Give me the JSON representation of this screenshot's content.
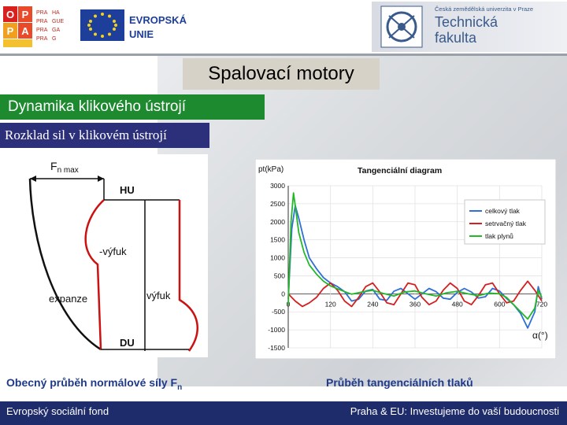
{
  "logos": {
    "opp_letters": [
      "O",
      "P",
      "P",
      "A"
    ],
    "praha_grid": [
      "PRA",
      "HA",
      "PRA",
      "GUE",
      "PRA",
      "GA",
      "PRA",
      "G"
    ],
    "eu_text_1": "EVROPSKÁ",
    "eu_text_2": "UNIE",
    "university": "Česká zemědělská univerzita v Praze",
    "faculty_1": "Technická",
    "faculty_2": "fakulta"
  },
  "title": "Spalovací motory",
  "subtitle": "Dynamika klikového ústrojí",
  "section_heading": "Rozklad sil v klikovém ústrojí",
  "left_diagram": {
    "label_fn": "F",
    "label_fn_sub": "n max",
    "label_hu": "HU",
    "label_du": "DU",
    "label_vyfuk_top": "-výfuk",
    "label_vyfuk_bottom": "výfuk",
    "label_expanze": "expanze",
    "color_black": "#111111",
    "color_red": "#cc1111"
  },
  "chart_data": {
    "type": "line",
    "title": "Tangenciální diagram",
    "ylabel": "pt(kPa)",
    "xlabel": "α(°)",
    "xlim": [
      0,
      720
    ],
    "ylim": [
      -1500,
      3000
    ],
    "y_ticks": [
      3000,
      2500,
      2000,
      1500,
      1000,
      500,
      0,
      -500,
      -1000,
      -1500
    ],
    "x_ticks": [
      0,
      120,
      240,
      360,
      480,
      600,
      720
    ],
    "grid": true,
    "legend_position": "right",
    "series": [
      {
        "name": "celkový tlak",
        "color": "#2f6fd6",
        "x": [
          0,
          10,
          20,
          30,
          45,
          60,
          80,
          100,
          120,
          140,
          160,
          180,
          200,
          220,
          240,
          260,
          280,
          300,
          320,
          340,
          360,
          380,
          400,
          420,
          440,
          460,
          480,
          500,
          520,
          540,
          560,
          580,
          600,
          620,
          640,
          660,
          680,
          700,
          710,
          720
        ],
        "y": [
          -150,
          1800,
          2450,
          2100,
          1500,
          1000,
          700,
          450,
          300,
          200,
          60,
          -200,
          -150,
          80,
          120,
          -150,
          -180,
          70,
          150,
          0,
          -150,
          0,
          150,
          60,
          -120,
          -150,
          40,
          150,
          50,
          -120,
          -80,
          150,
          80,
          -130,
          -300,
          -550,
          -950,
          -500,
          200,
          -150
        ]
      },
      {
        "name": "setrvačný tlak",
        "color": "#d42020",
        "x": [
          0,
          20,
          40,
          60,
          80,
          100,
          120,
          140,
          160,
          180,
          200,
          220,
          240,
          260,
          280,
          300,
          320,
          340,
          360,
          380,
          400,
          420,
          440,
          460,
          480,
          500,
          520,
          540,
          560,
          580,
          600,
          620,
          640,
          660,
          680,
          700,
          720
        ],
        "y": [
          0,
          -200,
          -350,
          -250,
          -100,
          150,
          300,
          100,
          -200,
          -350,
          -100,
          200,
          300,
          50,
          -250,
          -300,
          0,
          300,
          250,
          -100,
          -300,
          -200,
          100,
          300,
          150,
          -200,
          -300,
          -50,
          250,
          300,
          0,
          -250,
          -200,
          100,
          350,
          100,
          -200
        ]
      },
      {
        "name": "tlak plynů",
        "color": "#22b82a",
        "x": [
          0,
          8,
          15,
          22,
          30,
          45,
          60,
          80,
          100,
          120,
          150,
          180,
          210,
          240,
          270,
          300,
          330,
          360,
          390,
          420,
          450,
          480,
          510,
          540,
          570,
          600,
          620,
          640,
          660,
          680,
          700,
          710,
          720
        ],
        "y": [
          -300,
          2000,
          2800,
          2300,
          1700,
          1150,
          800,
          550,
          350,
          220,
          100,
          -10,
          50,
          100,
          10,
          -60,
          50,
          80,
          0,
          -60,
          30,
          70,
          0,
          -50,
          20,
          0,
          -100,
          -300,
          -500,
          -700,
          -400,
          100,
          -100
        ]
      }
    ]
  },
  "left_caption": "Obecný průběh normálové síly F",
  "left_caption_sub": "n",
  "right_caption": "Průběh tangenciálních tlaků",
  "footer_left": "Evropský sociální fond",
  "footer_right": "Praha & EU: Investujeme do vaší budoucnosti"
}
